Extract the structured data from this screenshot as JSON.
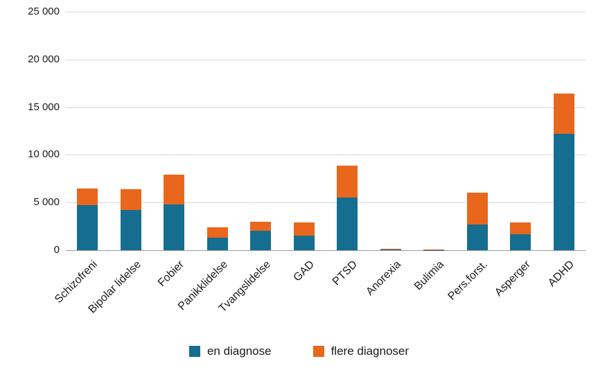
{
  "chart_data": {
    "type": "bar",
    "stacked": true,
    "title": "",
    "xlabel": "",
    "ylabel": "",
    "categories": [
      "Schizofreni",
      "Bipolar lidelse",
      "Fobier",
      "Panikklidelse",
      "Tvangslidelse",
      "GAD",
      "PTSD",
      "Anorexia",
      "Bulimia",
      "Pers.forst.",
      "Asperger",
      "ADHD"
    ],
    "series": [
      {
        "name": "en diagnose",
        "color": "#156e8f",
        "values": [
          4700,
          4200,
          4800,
          1300,
          2000,
          1500,
          5500,
          50,
          30,
          2700,
          1700,
          12200
        ]
      },
      {
        "name": "flere diagnoser",
        "color": "#e8671d",
        "values": [
          1800,
          2200,
          3100,
          1100,
          1000,
          1400,
          3400,
          100,
          70,
          3300,
          1200,
          4200
        ]
      }
    ],
    "y_axis": {
      "max": 25000,
      "ticks": [
        0,
        5000,
        10000,
        15000,
        20000,
        25000
      ],
      "tick_labels": [
        "0",
        "5 000",
        "10 000",
        "15 000",
        "20 000",
        "25 000"
      ]
    },
    "grid": "horizontal",
    "legend": {
      "position": "bottom",
      "items": [
        "en diagnose",
        "flere diagnoser"
      ]
    },
    "colors": {
      "grid": "#d9d9d9",
      "baseline": "#9a9a9a",
      "text": "#1a1a1a"
    }
  }
}
